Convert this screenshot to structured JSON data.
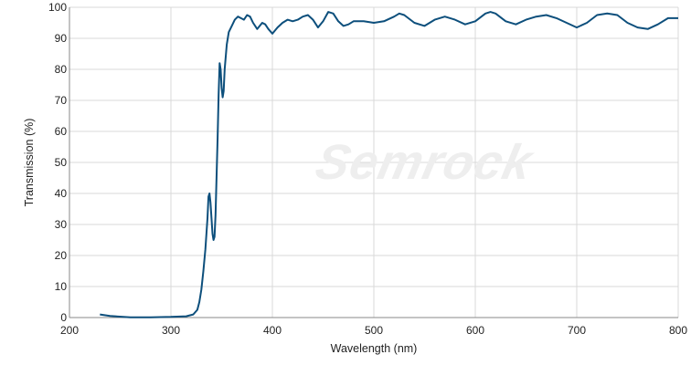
{
  "chart_data": {
    "type": "line",
    "xlabel": "Wavelength (nm)",
    "ylabel": "Transmission (%)",
    "xlim": [
      200,
      800
    ],
    "ylim": [
      0,
      100
    ],
    "x_ticks": [
      200,
      300,
      400,
      500,
      600,
      700,
      800
    ],
    "y_ticks": [
      0,
      10,
      20,
      30,
      40,
      50,
      60,
      70,
      80,
      90,
      100
    ],
    "grid": true,
    "legend": "none",
    "watermark": "Semrock",
    "colors": {
      "line": "#0d4f7c",
      "grid": "#d9d9d9",
      "axis": "#888888"
    },
    "series": [
      {
        "x": [
          230,
          240,
          260,
          280,
          300,
          315,
          322,
          326,
          328,
          330,
          332,
          334,
          336,
          337,
          338,
          339,
          340,
          341,
          342,
          343,
          344,
          345,
          346,
          347,
          348,
          349,
          350,
          351,
          352,
          353,
          355,
          357,
          360,
          363,
          366,
          369,
          372,
          375,
          378,
          381,
          385,
          390,
          393,
          396,
          400,
          405,
          410,
          415,
          420,
          425,
          430,
          435,
          440,
          445,
          450,
          455,
          460,
          465,
          470,
          475,
          480,
          490,
          500,
          510,
          520,
          525,
          530,
          540,
          550,
          560,
          570,
          580,
          590,
          600,
          610,
          615,
          620,
          630,
          640,
          650,
          660,
          670,
          680,
          690,
          700,
          710,
          720,
          730,
          740,
          750,
          760,
          770,
          780,
          790,
          800
        ],
        "y": [
          1,
          0.5,
          0.1,
          0.1,
          0.2,
          0.4,
          1,
          2.5,
          5,
          9,
          15,
          22,
          32,
          39,
          40,
          37,
          32,
          27,
          25,
          26,
          33,
          45,
          58,
          72,
          82,
          80,
          74,
          71,
          73,
          80,
          88,
          92,
          94,
          96,
          97,
          96.5,
          96,
          97.5,
          97,
          95,
          93,
          95,
          94.5,
          93,
          91.5,
          93.5,
          95,
          96,
          95.5,
          96,
          97,
          97.5,
          96,
          93.5,
          95.5,
          98.5,
          98,
          95.5,
          94,
          94.5,
          95.5,
          95.5,
          95,
          95.5,
          97,
          98,
          97.5,
          95,
          94,
          96,
          97,
          96,
          94.5,
          95.5,
          98,
          98.5,
          98,
          95.5,
          94.5,
          96,
          97,
          97.5,
          96.5,
          95,
          93.5,
          95,
          97.5,
          98,
          97.5,
          95,
          93.5,
          93,
          94.5,
          96.5,
          96.5
        ]
      }
    ]
  }
}
